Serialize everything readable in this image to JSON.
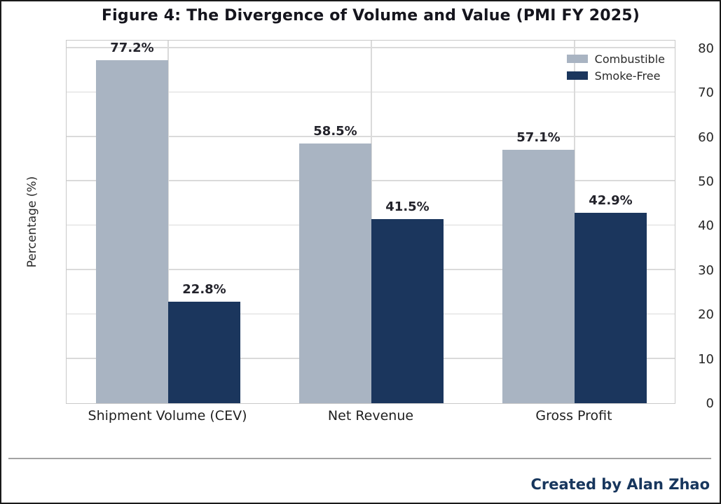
{
  "chart_data": {
    "type": "bar",
    "title": "Figure 4: The Divergence of Volume and Value (PMI FY 2025)",
    "ylabel": "Percentage (%)",
    "xlabel": "",
    "categories": [
      "Shipment Volume (CEV)",
      "Net Revenue",
      "Gross Profit"
    ],
    "series": [
      {
        "name": "Combustible",
        "color": "#a9b4c2",
        "values": [
          77.2,
          58.5,
          57.1
        ],
        "labels": [
          "77.2%",
          "58.5%",
          "57.1%"
        ]
      },
      {
        "name": "Smoke-Free",
        "color": "#1b365d",
        "values": [
          22.8,
          41.5,
          42.9
        ],
        "labels": [
          "22.8%",
          "41.5%",
          "42.9%"
        ]
      }
    ],
    "ylim": [
      0,
      82
    ],
    "yticks": [
      0,
      10,
      20,
      30,
      40,
      50,
      60,
      70,
      80
    ],
    "grid": true,
    "legend_position": "upper right"
  },
  "footer": {
    "credit": "Created by Alan Zhao"
  }
}
